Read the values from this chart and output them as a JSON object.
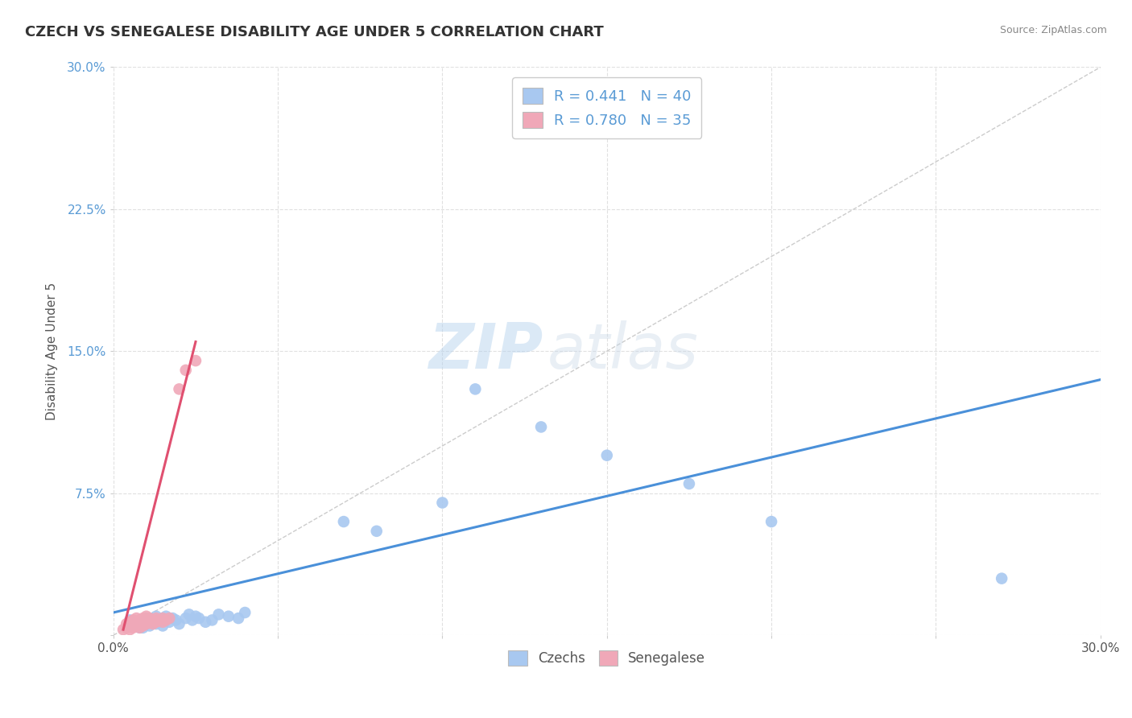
{
  "title": "CZECH VS SENEGALESE DISABILITY AGE UNDER 5 CORRELATION CHART",
  "source": "Source: ZipAtlas.com",
  "ylabel": "Disability Age Under 5",
  "xlim": [
    0.0,
    0.3
  ],
  "ylim": [
    0.0,
    0.3
  ],
  "xticks": [
    0.0,
    0.05,
    0.1,
    0.15,
    0.2,
    0.25,
    0.3
  ],
  "yticks": [
    0.0,
    0.075,
    0.15,
    0.225,
    0.3
  ],
  "xtick_labels": [
    "0.0%",
    "",
    "",
    "",
    "",
    "",
    "30.0%"
  ],
  "ytick_labels": [
    "",
    "7.5%",
    "15.0%",
    "22.5%",
    "30.0%"
  ],
  "czech_R": 0.441,
  "czech_N": 40,
  "senegalese_R": 0.78,
  "senegalese_N": 35,
  "czech_color": "#a8c8f0",
  "senegalese_color": "#f0a8b8",
  "trendline_czech_color": "#4a90d9",
  "trendline_senegalese_color": "#e05070",
  "watermark_zip": "ZIP",
  "watermark_atlas": "atlas",
  "background_color": "#ffffff",
  "czech_trendline": [
    [
      0.0,
      0.012
    ],
    [
      0.3,
      0.135
    ]
  ],
  "senegalese_trendline": [
    [
      0.003,
      0.003
    ],
    [
      0.025,
      0.155
    ]
  ],
  "czech_points": [
    [
      0.005,
      0.005
    ],
    [
      0.005,
      0.008
    ],
    [
      0.007,
      0.006
    ],
    [
      0.008,
      0.004
    ],
    [
      0.009,
      0.007
    ],
    [
      0.009,
      0.004
    ],
    [
      0.01,
      0.006
    ],
    [
      0.01,
      0.009
    ],
    [
      0.011,
      0.005
    ],
    [
      0.012,
      0.008
    ],
    [
      0.013,
      0.006
    ],
    [
      0.013,
      0.01
    ],
    [
      0.014,
      0.007
    ],
    [
      0.015,
      0.005
    ],
    [
      0.015,
      0.009
    ],
    [
      0.016,
      0.01
    ],
    [
      0.017,
      0.007
    ],
    [
      0.018,
      0.009
    ],
    [
      0.019,
      0.008
    ],
    [
      0.02,
      0.006
    ],
    [
      0.022,
      0.009
    ],
    [
      0.023,
      0.011
    ],
    [
      0.024,
      0.008
    ],
    [
      0.025,
      0.01
    ],
    [
      0.026,
      0.009
    ],
    [
      0.028,
      0.007
    ],
    [
      0.03,
      0.008
    ],
    [
      0.032,
      0.011
    ],
    [
      0.035,
      0.01
    ],
    [
      0.038,
      0.009
    ],
    [
      0.04,
      0.012
    ],
    [
      0.07,
      0.06
    ],
    [
      0.08,
      0.055
    ],
    [
      0.1,
      0.07
    ],
    [
      0.11,
      0.13
    ],
    [
      0.13,
      0.11
    ],
    [
      0.15,
      0.095
    ],
    [
      0.175,
      0.08
    ],
    [
      0.2,
      0.06
    ],
    [
      0.27,
      0.03
    ]
  ],
  "senegalese_points": [
    [
      0.003,
      0.003
    ],
    [
      0.004,
      0.004
    ],
    [
      0.004,
      0.006
    ],
    [
      0.005,
      0.003
    ],
    [
      0.005,
      0.005
    ],
    [
      0.005,
      0.007
    ],
    [
      0.006,
      0.004
    ],
    [
      0.006,
      0.006
    ],
    [
      0.006,
      0.008
    ],
    [
      0.007,
      0.005
    ],
    [
      0.007,
      0.007
    ],
    [
      0.007,
      0.009
    ],
    [
      0.008,
      0.004
    ],
    [
      0.008,
      0.006
    ],
    [
      0.008,
      0.008
    ],
    [
      0.009,
      0.005
    ],
    [
      0.009,
      0.007
    ],
    [
      0.009,
      0.009
    ],
    [
      0.01,
      0.006
    ],
    [
      0.01,
      0.008
    ],
    [
      0.01,
      0.01
    ],
    [
      0.011,
      0.007
    ],
    [
      0.011,
      0.009
    ],
    [
      0.012,
      0.006
    ],
    [
      0.012,
      0.008
    ],
    [
      0.013,
      0.007
    ],
    [
      0.013,
      0.009
    ],
    [
      0.014,
      0.008
    ],
    [
      0.015,
      0.007
    ],
    [
      0.015,
      0.009
    ],
    [
      0.016,
      0.008
    ],
    [
      0.017,
      0.009
    ],
    [
      0.02,
      0.13
    ],
    [
      0.022,
      0.14
    ],
    [
      0.025,
      0.145
    ]
  ]
}
